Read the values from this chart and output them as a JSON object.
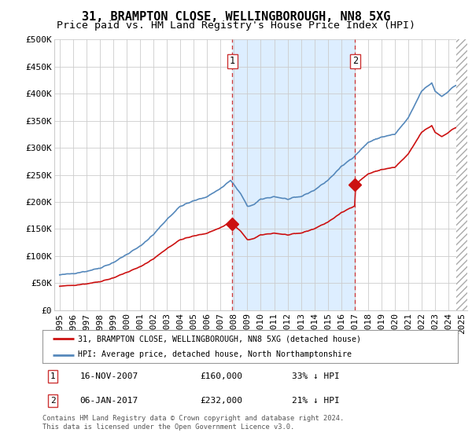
{
  "title": "31, BRAMPTON CLOSE, WELLINGBOROUGH, NN8 5XG",
  "subtitle": "Price paid vs. HM Land Registry's House Price Index (HPI)",
  "legend_line1": "31, BRAMPTON CLOSE, WELLINGBOROUGH, NN8 5XG (detached house)",
  "legend_line2": "HPI: Average price, detached house, North Northamptonshire",
  "annotation1_label": "1",
  "annotation1_date": "16-NOV-2007",
  "annotation1_price": "£160,000",
  "annotation1_hpi": "33% ↓ HPI",
  "annotation2_label": "2",
  "annotation2_date": "06-JAN-2017",
  "annotation2_price": "£232,000",
  "annotation2_hpi": "21% ↓ HPI",
  "footnote": "Contains HM Land Registry data © Crown copyright and database right 2024.\nThis data is licensed under the Open Government Licence v3.0.",
  "ylim": [
    0,
    500000
  ],
  "yticks": [
    0,
    50000,
    100000,
    150000,
    200000,
    250000,
    300000,
    350000,
    400000,
    450000,
    500000
  ],
  "ytick_labels": [
    "£0",
    "£50K",
    "£100K",
    "£150K",
    "£200K",
    "£250K",
    "£300K",
    "£350K",
    "£400K",
    "£450K",
    "£500K"
  ],
  "sale1_x": 2007.88,
  "sale1_y": 160000,
  "sale2_x": 2017.04,
  "sale2_y": 232000,
  "vline1_x": 2007.88,
  "vline2_x": 2017.04,
  "shade1_xmin": 2007.88,
  "shade1_xmax": 2017.04,
  "hpi_color": "#5588bb",
  "sale_color": "#cc1111",
  "shade_color": "#ddeeff",
  "vline_color": "#cc3333",
  "background_color": "#ffffff",
  "grid_color": "#cccccc",
  "title_fontsize": 11,
  "subtitle_fontsize": 9.5,
  "tick_fontsize": 8,
  "xtick_years": [
    1995,
    1996,
    1997,
    1998,
    1999,
    2000,
    2001,
    2002,
    2003,
    2004,
    2005,
    2006,
    2007,
    2008,
    2009,
    2010,
    2011,
    2012,
    2013,
    2014,
    2015,
    2016,
    2017,
    2018,
    2019,
    2020,
    2021,
    2022,
    2023,
    2024,
    2025
  ]
}
